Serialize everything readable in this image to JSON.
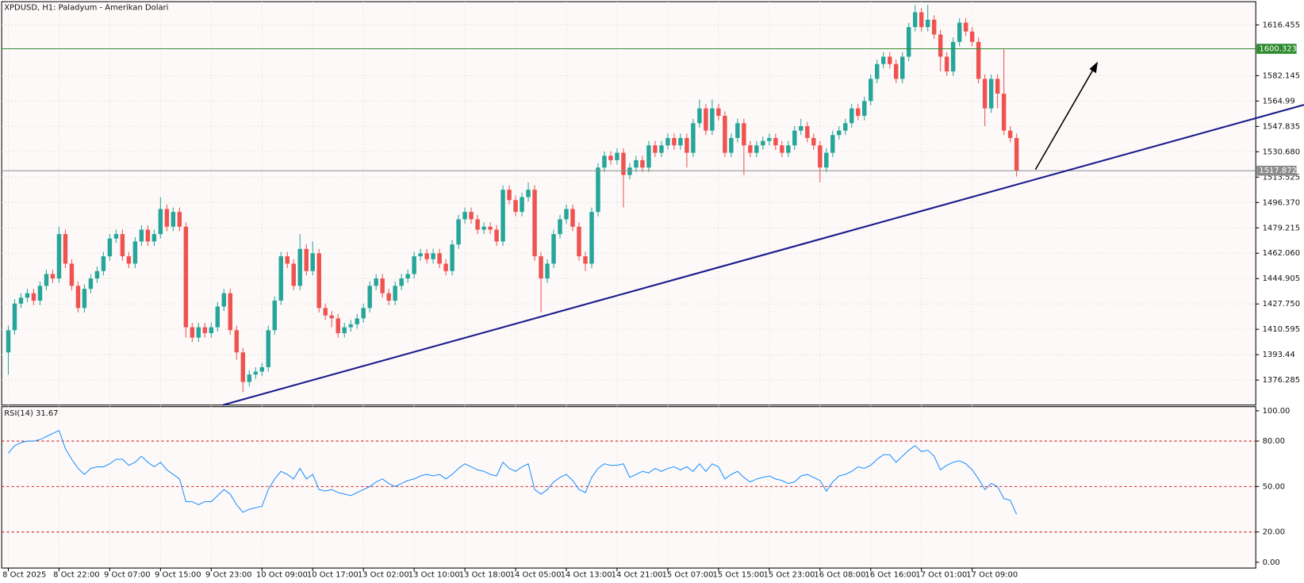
{
  "chart_data": {
    "type": "candlestick",
    "title": "XPDUSD, H1:  Paladyum - Amerikan Dolari",
    "up_color": "#26a69a",
    "down_color": "#ef5350",
    "grid": true,
    "ylim": [
      1359.4,
      1632.2
    ],
    "yticks": [
      1616.455,
      1582.145,
      1564.99,
      {
        "value": 1547.835,
        "label": "1547.835"
      },
      {
        "value": 1530.68,
        "label": "1530.680"
      },
      1513.525,
      {
        "value": 1496.37,
        "label": "1496.370"
      },
      1479.215,
      {
        "value": 1462.06,
        "label": "1462.060"
      },
      1444.905,
      {
        "value": 1427.75,
        "label": "1427.750"
      },
      1410.595,
      1393.44,
      1376.285
    ],
    "levels": [
      {
        "value": 1600.323,
        "color": "#2e8b2e"
      },
      {
        "value": 1517.872,
        "color": "#8c8c8c"
      }
    ],
    "categories": [
      "8 Oct 2025",
      null,
      null,
      null,
      null,
      null,
      null,
      null,
      "8 Oct 22:00",
      null,
      null,
      null,
      null,
      null,
      null,
      null,
      "9 Oct 07:00",
      null,
      null,
      null,
      null,
      null,
      null,
      null,
      "9 Oct 15:00",
      null,
      null,
      null,
      null,
      null,
      null,
      null,
      "9 Oct 23:00",
      null,
      null,
      null,
      null,
      null,
      null,
      null,
      "10 Oct 09:00",
      null,
      null,
      null,
      null,
      null,
      null,
      null,
      "10 Oct 17:00",
      null,
      null,
      null,
      null,
      null,
      null,
      null,
      "13 Oct 02:00",
      null,
      null,
      null,
      null,
      null,
      null,
      null,
      "13 Oct 10:00",
      null,
      null,
      null,
      null,
      null,
      null,
      null,
      "13 Oct 18:00",
      null,
      null,
      null,
      null,
      null,
      null,
      null,
      "14 Oct 05:00",
      null,
      null,
      null,
      null,
      null,
      null,
      null,
      "14 Oct 13:00",
      null,
      null,
      null,
      null,
      null,
      null,
      null,
      "14 Oct 21:00",
      null,
      null,
      null,
      null,
      null,
      null,
      null,
      "15 Oct 07:00",
      null,
      null,
      null,
      null,
      null,
      null,
      null,
      "15 Oct 15:00",
      null,
      null,
      null,
      null,
      null,
      null,
      null,
      "15 Oct 23:00",
      null,
      null,
      null,
      null,
      null,
      null,
      null,
      "16 Oct 08:00",
      null,
      null,
      null,
      null,
      null,
      null,
      null,
      "16 Oct 16:00",
      null,
      null,
      null,
      null,
      null,
      null,
      null,
      "17 Oct 01:00",
      null,
      null,
      null,
      null,
      null,
      null,
      null,
      "17 Oct 09:00",
      null,
      null,
      null,
      null,
      null,
      null,
      null
    ],
    "open": [
      1395,
      1410,
      1428,
      1432,
      1435,
      1430,
      1440,
      1448,
      1445,
      1475,
      1455,
      1440,
      1425,
      1438,
      1445,
      1450,
      1460,
      1472,
      1475,
      1460,
      1455,
      1470,
      1478,
      1470,
      1475,
      1492,
      1480,
      1490,
      1480,
      1412,
      1405,
      1412,
      1408,
      1412,
      1426,
      1435,
      1410,
      1395,
      1375,
      1380,
      1382,
      1385,
      1410,
      1430,
      1460,
      1455,
      1440,
      1465,
      1450,
      1462,
      1425,
      1420,
      1418,
      1408,
      1412,
      1414,
      1418,
      1425,
      1440,
      1445,
      1435,
      1430,
      1440,
      1445,
      1448,
      1460,
      1462,
      1458,
      1462,
      1455,
      1450,
      1468,
      1485,
      1490,
      1485,
      1478,
      1480,
      1478,
      1470,
      1505,
      1498,
      1490,
      1500,
      1505,
      1460,
      1445,
      1455,
      1475,
      1485,
      1492,
      1480,
      1460,
      1455,
      1490,
      1520,
      1528,
      1525,
      1530,
      1515,
      1520,
      1525,
      1520,
      1535,
      1530,
      1535,
      1540,
      1535,
      1540,
      1530,
      1550,
      1560,
      1545,
      1560,
      1555,
      1530,
      1540,
      1550,
      1535,
      1530,
      1535,
      1538,
      1540,
      1535,
      1530,
      1535,
      1545,
      1548,
      1540,
      1535,
      1520,
      1530,
      1542,
      1545,
      1550,
      1560,
      1555,
      1565,
      1580,
      1590,
      1595,
      1590,
      1580,
      1595,
      1615,
      1625,
      1615,
      1620,
      1610,
      1595,
      1585,
      1605,
      1618,
      1612,
      1605,
      1580,
      1560,
      1580,
      1570,
      1545,
      1540
    ],
    "high": [
      1413,
      1431,
      1435,
      1438,
      1438,
      1443,
      1451,
      1451,
      1480,
      1478,
      1458,
      1443,
      1441,
      1448,
      1453,
      1463,
      1475,
      1478,
      1478,
      1463,
      1473,
      1481,
      1481,
      1478,
      1500,
      1495,
      1493,
      1493,
      1483,
      1415,
      1415,
      1415,
      1415,
      1429,
      1438,
      1438,
      1413,
      1398,
      1383,
      1385,
      1388,
      1413,
      1433,
      1463,
      1463,
      1458,
      1475,
      1468,
      1470,
      1465,
      1428,
      1423,
      1421,
      1415,
      1417,
      1421,
      1428,
      1443,
      1448,
      1448,
      1438,
      1443,
      1448,
      1451,
      1463,
      1465,
      1465,
      1465,
      1465,
      1458,
      1471,
      1488,
      1493,
      1493,
      1488,
      1483,
      1483,
      1481,
      1508,
      1508,
      1501,
      1503,
      1510,
      1508,
      1463,
      1458,
      1478,
      1488,
      1495,
      1495,
      1483,
      1463,
      1493,
      1523,
      1531,
      1531,
      1533,
      1533,
      1523,
      1528,
      1528,
      1538,
      1538,
      1538,
      1543,
      1543,
      1543,
      1543,
      1553,
      1566,
      1563,
      1566,
      1563,
      1558,
      1543,
      1553,
      1553,
      1538,
      1538,
      1541,
      1543,
      1543,
      1538,
      1538,
      1548,
      1553,
      1551,
      1543,
      1538,
      1533,
      1545,
      1548,
      1553,
      1563,
      1563,
      1568,
      1583,
      1593,
      1598,
      1598,
      1593,
      1598,
      1618,
      1630,
      1628,
      1630,
      1623,
      1613,
      1598,
      1608,
      1621,
      1621,
      1615,
      1608,
      1583,
      1583,
      1583,
      1600,
      1548,
      1543
    ],
    "low": [
      1380,
      1407,
      1425,
      1429,
      1427,
      1427,
      1437,
      1442,
      1442,
      1452,
      1437,
      1422,
      1422,
      1435,
      1442,
      1447,
      1457,
      1469,
      1457,
      1452,
      1452,
      1467,
      1467,
      1467,
      1472,
      1477,
      1477,
      1477,
      1405,
      1402,
      1402,
      1405,
      1405,
      1409,
      1423,
      1407,
      1390,
      1368,
      1372,
      1377,
      1379,
      1382,
      1407,
      1427,
      1452,
      1437,
      1437,
      1447,
      1447,
      1422,
      1417,
      1412,
      1405,
      1405,
      1409,
      1411,
      1415,
      1422,
      1437,
      1432,
      1427,
      1427,
      1437,
      1442,
      1445,
      1457,
      1455,
      1455,
      1452,
      1447,
      1447,
      1465,
      1482,
      1482,
      1475,
      1475,
      1475,
      1467,
      1467,
      1495,
      1487,
      1487,
      1497,
      1457,
      1422,
      1442,
      1452,
      1472,
      1482,
      1477,
      1457,
      1450,
      1452,
      1487,
      1517,
      1522,
      1522,
      1493,
      1512,
      1517,
      1517,
      1517,
      1527,
      1527,
      1532,
      1532,
      1532,
      1520,
      1527,
      1547,
      1542,
      1542,
      1552,
      1527,
      1527,
      1537,
      1515,
      1527,
      1527,
      1532,
      1535,
      1532,
      1527,
      1527,
      1532,
      1542,
      1537,
      1532,
      1510,
      1517,
      1527,
      1539,
      1542,
      1547,
      1552,
      1552,
      1562,
      1577,
      1587,
      1587,
      1577,
      1577,
      1592,
      1612,
      1612,
      1612,
      1607,
      1585,
      1582,
      1582,
      1602,
      1609,
      1602,
      1577,
      1548,
      1557,
      1560,
      1542,
      1537,
      1514
    ],
    "close": [
      1410,
      1428,
      1432,
      1435,
      1430,
      1440,
      1448,
      1445,
      1475,
      1455,
      1440,
      1425,
      1438,
      1445,
      1450,
      1460,
      1472,
      1475,
      1460,
      1455,
      1470,
      1478,
      1470,
      1475,
      1492,
      1480,
      1490,
      1480,
      1412,
      1405,
      1412,
      1408,
      1412,
      1426,
      1435,
      1410,
      1395,
      1375,
      1380,
      1382,
      1385,
      1410,
      1430,
      1460,
      1455,
      1440,
      1465,
      1450,
      1462,
      1425,
      1420,
      1418,
      1408,
      1412,
      1414,
      1418,
      1425,
      1440,
      1445,
      1435,
      1430,
      1440,
      1445,
      1448,
      1460,
      1462,
      1458,
      1462,
      1455,
      1450,
      1468,
      1485,
      1490,
      1485,
      1478,
      1480,
      1478,
      1470,
      1505,
      1498,
      1490,
      1500,
      1505,
      1460,
      1445,
      1455,
      1475,
      1485,
      1492,
      1480,
      1460,
      1455,
      1490,
      1520,
      1528,
      1525,
      1530,
      1515,
      1520,
      1525,
      1520,
      1535,
      1530,
      1535,
      1540,
      1535,
      1540,
      1530,
      1550,
      1560,
      1545,
      1560,
      1555,
      1530,
      1540,
      1550,
      1535,
      1530,
      1535,
      1538,
      1540,
      1535,
      1530,
      1535,
      1545,
      1548,
      1540,
      1535,
      1520,
      1530,
      1542,
      1545,
      1550,
      1560,
      1555,
      1565,
      1580,
      1590,
      1595,
      1590,
      1580,
      1595,
      1615,
      1625,
      1615,
      1620,
      1610,
      1595,
      1585,
      1605,
      1618,
      1612,
      1605,
      1580,
      1560,
      1580,
      1570,
      1545,
      1540,
      1517.9
    ],
    "rsi": {
      "label": "RSI(14) 31.67",
      "color": "#1e90ff",
      "level_color": "#d62020",
      "ylim": [
        -3.8,
        102.7
      ],
      "yticks": [
        {
          "value": 100,
          "label": "100.00"
        },
        {
          "value": 80,
          "label": "80.00"
        },
        {
          "value": 50,
          "label": "50.00"
        },
        {
          "value": 20,
          "label": "20.00"
        },
        {
          "value": 0,
          "label": "0.00"
        }
      ],
      "levels": [
        80,
        50,
        20
      ],
      "values": [
        72,
        77,
        79,
        80,
        80,
        81,
        83,
        85,
        87,
        75,
        68,
        62,
        58,
        62,
        63,
        63,
        65,
        68,
        68,
        64,
        66,
        70,
        66,
        63,
        66,
        61,
        58,
        55,
        40,
        40,
        38,
        40,
        40,
        44,
        48,
        45,
        38,
        33,
        35,
        36,
        37,
        48,
        55,
        60,
        58,
        55,
        62,
        55,
        58,
        48,
        47,
        48,
        46,
        45,
        44,
        46,
        48,
        50,
        53,
        55,
        52,
        50,
        52,
        54,
        55,
        57,
        58,
        57,
        58,
        55,
        58,
        62,
        65,
        63,
        61,
        60,
        58,
        57,
        66,
        62,
        60,
        63,
        65,
        48,
        45,
        48,
        53,
        56,
        58,
        54,
        48,
        46,
        56,
        62,
        65,
        64,
        64,
        65,
        56,
        58,
        60,
        59,
        62,
        60,
        62,
        63,
        61,
        63,
        60,
        65,
        60,
        65,
        63,
        55,
        58,
        60,
        56,
        53,
        55,
        56,
        57,
        55,
        54,
        52,
        53,
        57,
        58,
        56,
        54,
        47,
        53,
        57,
        58,
        60,
        63,
        62,
        64,
        68,
        71,
        71,
        66,
        70,
        74,
        77,
        73,
        74,
        70,
        61,
        64,
        66,
        67,
        65,
        61,
        55,
        48,
        52,
        50,
        42,
        41,
        31.67
      ]
    }
  }
}
